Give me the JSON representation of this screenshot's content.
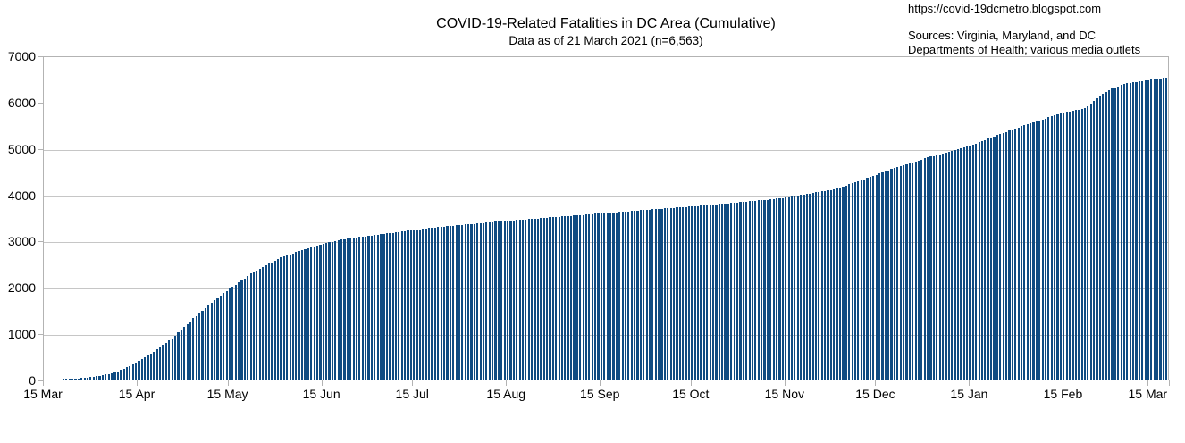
{
  "attribution": {
    "url": "https://covid-19dcmetro.blogspot.com",
    "sources_line1": "Sources: Virginia, Maryland, and DC",
    "sources_line2": "Departments of Health; various media outlets"
  },
  "chart_data": {
    "type": "bar",
    "title": "COVID-19-Related Fatalities in DC Area (Cumulative)",
    "subtitle": "Data as of 21 March 2021 (n=6,563)",
    "ylim": [
      0,
      7000
    ],
    "yticks": [
      0,
      1000,
      2000,
      3000,
      4000,
      5000,
      6000,
      7000
    ],
    "xticks": [
      {
        "label": "15 Mar",
        "day": 0
      },
      {
        "label": "15 Apr",
        "day": 31
      },
      {
        "label": "15 May",
        "day": 61
      },
      {
        "label": "15 Jun",
        "day": 92
      },
      {
        "label": "15 Jul",
        "day": 122
      },
      {
        "label": "15 Aug",
        "day": 153
      },
      {
        "label": "15 Sep",
        "day": 184
      },
      {
        "label": "15 Oct",
        "day": 214
      },
      {
        "label": "15 Nov",
        "day": 245
      },
      {
        "label": "15 Dec",
        "day": 275
      },
      {
        "label": "15 Jan",
        "day": 306
      },
      {
        "label": "15 Feb",
        "day": 337
      },
      {
        "label": "15 Mar",
        "day": 365
      }
    ],
    "total_days": 372,
    "final_cumulative_value": 6563,
    "grid": true,
    "legend": false,
    "bar_color": "#0f4b82",
    "gridline_color": "#c6c6c6",
    "axis_color": "#b3b3b3",
    "cumulative_anchor_points_day_value": [
      [
        0,
        2
      ],
      [
        3,
        5
      ],
      [
        7,
        12
      ],
      [
        10,
        22
      ],
      [
        14,
        40
      ],
      [
        17,
        75
      ],
      [
        21,
        120
      ],
      [
        24,
        180
      ],
      [
        28,
        290
      ],
      [
        31,
        400
      ],
      [
        35,
        560
      ],
      [
        38,
        700
      ],
      [
        42,
        900
      ],
      [
        45,
        1080
      ],
      [
        49,
        1330
      ],
      [
        52,
        1500
      ],
      [
        56,
        1720
      ],
      [
        61,
        1975
      ],
      [
        65,
        2150
      ],
      [
        68,
        2300
      ],
      [
        72,
        2450
      ],
      [
        75,
        2550
      ],
      [
        78,
        2650
      ],
      [
        82,
        2740
      ],
      [
        85,
        2820
      ],
      [
        92,
        2950
      ],
      [
        99,
        3050
      ],
      [
        108,
        3130
      ],
      [
        115,
        3190
      ],
      [
        122,
        3250
      ],
      [
        130,
        3310
      ],
      [
        138,
        3360
      ],
      [
        146,
        3405
      ],
      [
        153,
        3450
      ],
      [
        161,
        3490
      ],
      [
        169,
        3530
      ],
      [
        177,
        3570
      ],
      [
        184,
        3610
      ],
      [
        192,
        3650
      ],
      [
        200,
        3690
      ],
      [
        207,
        3725
      ],
      [
        214,
        3760
      ],
      [
        222,
        3805
      ],
      [
        231,
        3860
      ],
      [
        238,
        3900
      ],
      [
        245,
        3950
      ],
      [
        252,
        4030
      ],
      [
        261,
        4130
      ],
      [
        268,
        4280
      ],
      [
        275,
        4450
      ],
      [
        283,
        4640
      ],
      [
        292,
        4820
      ],
      [
        299,
        4950
      ],
      [
        306,
        5070
      ],
      [
        314,
        5280
      ],
      [
        323,
        5500
      ],
      [
        330,
        5650
      ],
      [
        337,
        5800
      ],
      [
        341,
        5850
      ],
      [
        344,
        5890
      ],
      [
        347,
        6050
      ],
      [
        351,
        6250
      ],
      [
        354,
        6350
      ],
      [
        358,
        6430
      ],
      [
        362,
        6470
      ],
      [
        365,
        6500
      ],
      [
        368,
        6530
      ],
      [
        371,
        6563
      ]
    ]
  }
}
